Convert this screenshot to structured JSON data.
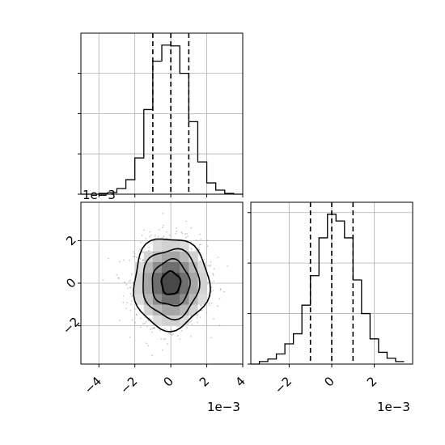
{
  "chart_data": [
    {
      "type": "histogram",
      "panel": "top-left marginal",
      "variable": "x",
      "x_range": [
        -0.005,
        0.004
      ],
      "bin_edges": [
        -0.005,
        -0.0045,
        -0.004,
        -0.0035,
        -0.003,
        -0.0025,
        -0.002,
        -0.0015,
        -0.001,
        -0.0005,
        0.0,
        0.0005,
        0.001,
        0.0015,
        0.002,
        0.0025,
        0.003,
        0.0035,
        0.004
      ],
      "counts": [
        0,
        0,
        1,
        2,
        7,
        18,
        45,
        105,
        165,
        185,
        184,
        150,
        90,
        40,
        14,
        5,
        1,
        0
      ],
      "quantile_lines": [
        -0.001,
        0.0,
        0.001
      ],
      "grid": true,
      "yticklabels": []
    },
    {
      "type": "scatter-density",
      "panel": "bottom-left joint",
      "x_range": [
        -0.005,
        0.004
      ],
      "y_range": [
        -0.0038,
        0.0038
      ],
      "xticks": [
        -0.004,
        -0.002,
        0.0,
        0.002,
        0.004
      ],
      "xticklabels": [
        "−4",
        "−2",
        "0",
        "2",
        "4"
      ],
      "yticks": [
        -0.002,
        0.0,
        0.002
      ],
      "yticklabels": [
        "−2",
        "0",
        "2"
      ],
      "x_offset_label": "1e−3",
      "y_offset_label": "1e−3",
      "contour_levels_sigma": [
        0.5,
        1.0,
        1.5,
        2.0
      ],
      "center": [
        0.0,
        0.0
      ],
      "sigma": [
        0.001,
        0.001
      ],
      "grid": true
    },
    {
      "type": "histogram",
      "panel": "bottom-right marginal",
      "variable": "y",
      "x_range": [
        -0.0038,
        0.0038
      ],
      "bin_edges": [
        -0.0038,
        -0.0034,
        -0.003,
        -0.0026,
        -0.0022,
        -0.0018,
        -0.0014,
        -0.001,
        -0.0006,
        -0.0002,
        0.0002,
        0.0006,
        0.001,
        0.0014,
        0.0018,
        0.0022,
        0.0026,
        0.003,
        0.0034
      ],
      "counts": [
        0,
        3,
        6,
        12,
        24,
        36,
        70,
        105,
        150,
        178,
        170,
        150,
        100,
        60,
        30,
        14,
        7,
        3
      ],
      "quantile_lines": [
        -0.001,
        0.0,
        0.001
      ],
      "xticks": [
        -0.002,
        0.0,
        0.002
      ],
      "xticklabels": [
        "−2",
        "0",
        "2"
      ],
      "x_offset_label": "1e−3",
      "grid": true,
      "yticklabels": []
    }
  ]
}
